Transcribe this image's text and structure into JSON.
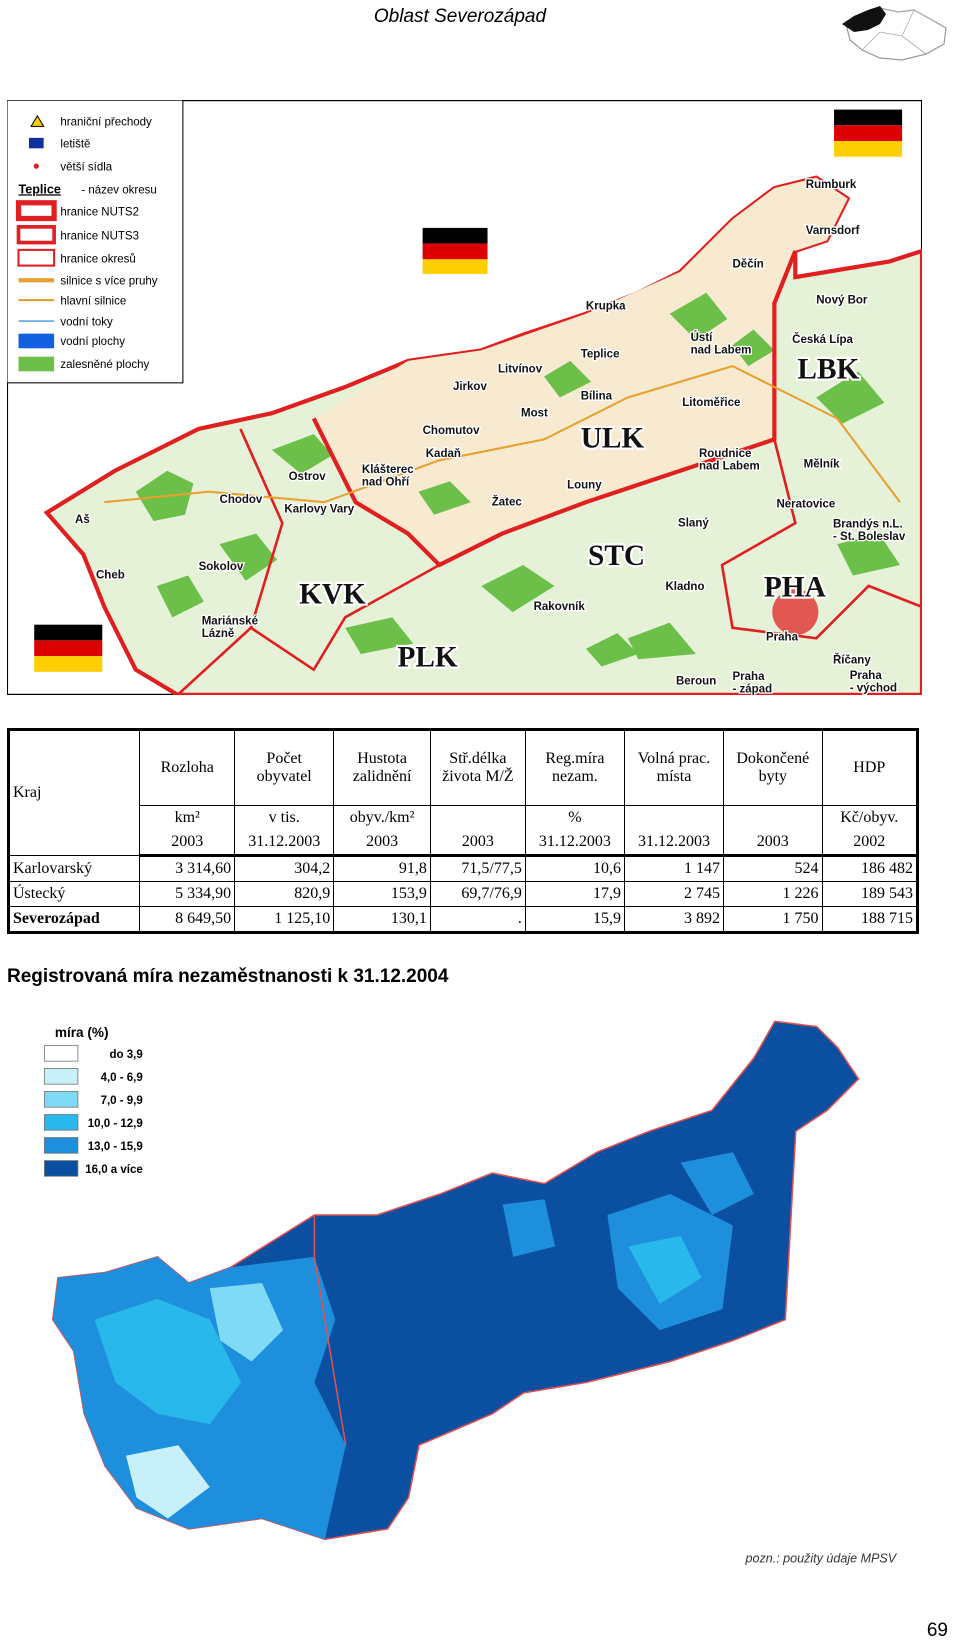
{
  "header": {
    "title": "Oblast Severozápad"
  },
  "map": {
    "legend": [
      "hraniční přechody",
      "letiště",
      "větší sídla",
      "- název okresu",
      "hranice NUTS2",
      "hranice NUTS3",
      "hranice okresů",
      "silnice s více pruhy",
      "hlavní silnice",
      "vodní toky",
      "vodní plochy",
      "zalesněné plochy"
    ],
    "legend_example": "Teplice",
    "labels": [
      [
        "Rumburk"
      ],
      [
        "Varnsdorf"
      ],
      [
        "Děčín"
      ],
      [
        "Nový Bor"
      ],
      [
        "Česká Lípa"
      ],
      [
        "LBK"
      ],
      [
        "Krupka"
      ],
      [
        "Ústí",
        "nad Labem"
      ],
      [
        "Teplice"
      ],
      [
        "Bílina"
      ],
      [
        "Litvínov"
      ],
      [
        "Jirkov"
      ],
      [
        "Most"
      ],
      [
        "Litoměřice"
      ],
      [
        "Chomutov"
      ],
      [
        "ULK"
      ],
      [
        "Kadaň"
      ],
      [
        "Klášterec",
        "nad Ohří"
      ],
      [
        "Roudnice",
        "nad Labem"
      ],
      [
        "Mělník"
      ],
      [
        "Louny"
      ],
      [
        "Žatec"
      ],
      [
        "Ostrov"
      ],
      [
        "Chodov"
      ],
      [
        "Karlovy Vary"
      ],
      [
        "Neratovice"
      ],
      [
        "Brandýs n.L.",
        "- St. Boleslav"
      ],
      [
        "Aš"
      ],
      [
        "Cheb"
      ],
      [
        "Sokolov"
      ],
      [
        "STC"
      ],
      [
        "Slaný"
      ],
      [
        "Kladno"
      ],
      [
        "PHA"
      ],
      [
        "KVK"
      ],
      [
        "Rakovník"
      ],
      [
        "Mariánské",
        "Lázně"
      ],
      [
        "Praha"
      ],
      [
        "PLK"
      ],
      [
        "Beroun"
      ],
      [
        "Praha",
        "- západ"
      ],
      [
        "Říčany"
      ],
      [
        "Praha",
        "- východ"
      ]
    ]
  },
  "table": {
    "corner": "Kraj",
    "columns": [
      "Rozloha",
      "Počet obyvatel",
      "Hustota zalidnění",
      "Stř.délka života M/Ž",
      "Reg.míra nezam.",
      "Volná prac. místa",
      "Dokončené byty",
      "HDP"
    ],
    "units": [
      "km²",
      "v tis.",
      "obyv./km²",
      null,
      "%",
      null,
      null,
      "Kč/obyv."
    ],
    "dates": [
      "2003",
      "31.12.2003",
      "2003",
      "2003",
      "31.12.2003",
      "31.12.2003",
      "2003",
      "2002"
    ],
    "rows": [
      [
        "Karlovarský",
        "3 314,60",
        "304,2",
        "91,8",
        "71,5/77,5",
        "10,6",
        "1 147",
        "524",
        "186 482"
      ],
      [
        "Ústecký",
        "5 334,90",
        "820,9",
        "153,9",
        "69,7/76,9",
        "17,9",
        "2 745",
        "1 226",
        "189 543"
      ],
      [
        "Severozápad",
        "8 649,50",
        "1 125,10",
        "130,1",
        ".",
        "15,9",
        "3 892",
        "1 750",
        "188 715"
      ]
    ]
  },
  "unemployment": {
    "title": "Registrovaná míra nezaměstnanosti k 31.12.2004",
    "legend_title": "míra (%)",
    "legend": [
      "do 3,9",
      "4,0 - 6,9",
      "7,0 - 9,9",
      "10,0 - 12,9",
      "13,0 - 15,9",
      "16,0 a více"
    ],
    "note": "pozn.: použity údaje MPSV"
  },
  "footer": {
    "page_number": "69"
  }
}
